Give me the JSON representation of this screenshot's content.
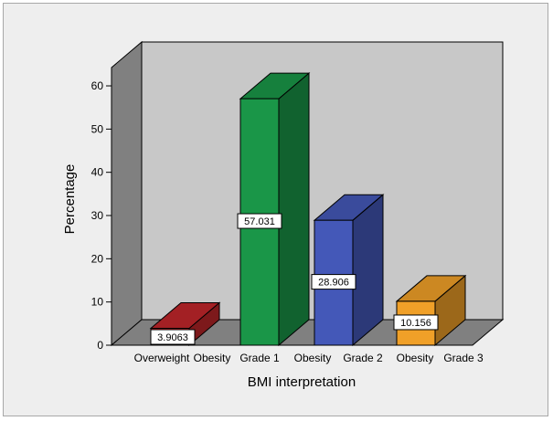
{
  "chart_data": {
    "type": "bar",
    "style": "3d",
    "categories": [
      "Overweight",
      "Obesity Grade 1",
      "Obesity Grade 2",
      "Obesity Grade 3"
    ],
    "tick_labels": [
      "Overweight",
      "Obesity",
      "Grade 1",
      "Obesity",
      "Grade 2",
      "Obesity",
      "Grade 3"
    ],
    "values": [
      3.9063,
      57.031,
      28.906,
      10.156
    ],
    "data_labels": [
      "3.9063",
      "57.031",
      "28.906",
      "10.156"
    ],
    "colors": [
      "#c0262a",
      "#1a9648",
      "#4458b8",
      "#f0a028"
    ],
    "xlabel": "BMI interpretation",
    "ylabel": "Percentage",
    "ylim": [
      0,
      60
    ],
    "yticks": [
      0,
      10,
      20,
      30,
      40,
      50,
      60
    ],
    "grid": false,
    "back_wall_color": "#c8c8c8",
    "side_wall_color": "#808080"
  }
}
